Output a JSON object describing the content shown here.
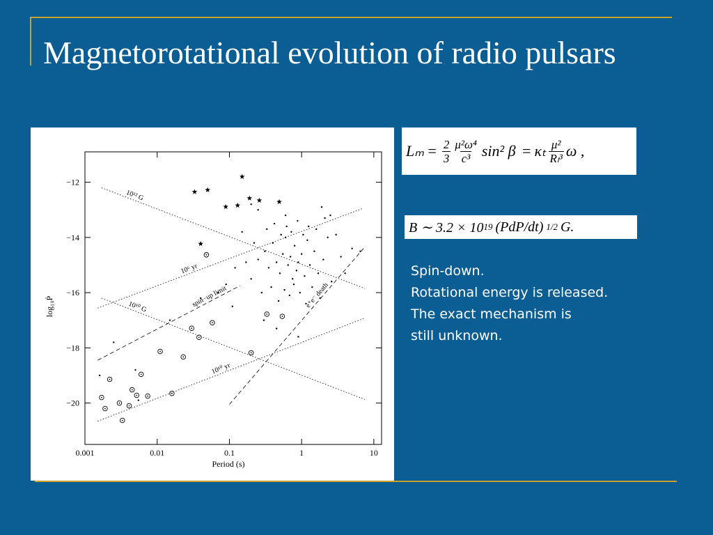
{
  "slide": {
    "title": "Magnetorotational evolution of radio pulsars",
    "equations": [
      [
        "Lₘ",
        "=",
        "2",
        "3",
        "μ²ω⁴",
        "c³",
        "sin² β",
        "=",
        "κₜ",
        "μ²",
        "Rₗ³",
        "ω ,"
      ],
      [
        "B ∼ 3.2 × 10",
        "19",
        "(PdP/dt)",
        "1/2",
        "G."
      ]
    ],
    "notes": [
      "Spin-down.",
      "Rotational energy is released.",
      "The exact mechanism is",
      "still unknown."
    ]
  },
  "chart_data": {
    "type": "scatter",
    "xlabel": "Period (s)",
    "ylabel": "log₁₀Ṗ",
    "xscale": "log",
    "xlim": [
      0.001,
      12.8
    ],
    "ylim": [
      -21.5,
      -10.9
    ],
    "xticks": [
      0.001,
      0.01,
      0.1,
      1,
      10
    ],
    "yticks": [
      {
        "value": -12,
        "label": "−12"
      },
      {
        "value": -14,
        "label": "−14"
      },
      {
        "value": -16,
        "label": "−16"
      },
      {
        "value": -18,
        "label": "−18"
      },
      {
        "value": -20,
        "label": "−20"
      }
    ],
    "color": "#000000",
    "series": [
      {
        "marker": "dot",
        "x": [
          0.25,
          0.31,
          0.35,
          0.4,
          0.45,
          0.5,
          0.55,
          0.6,
          0.65,
          0.7,
          0.75,
          0.8,
          0.85,
          0.9,
          1.0,
          1.1,
          1.2,
          1.3,
          1.5,
          1.7,
          2.0,
          2.3,
          2.6,
          3.0,
          3.5,
          0.2,
          0.22,
          0.28,
          0.33,
          0.38,
          0.42,
          0.48,
          0.52,
          0.58,
          0.62,
          0.68,
          0.72,
          0.78,
          0.88,
          0.95,
          1.05,
          1.15,
          1.25,
          1.4,
          1.6,
          1.8,
          2.1,
          0.17,
          0.15,
          0.12,
          0.3,
          0.45,
          0.9,
          1.9,
          2.5,
          0.07,
          0.09,
          0.04,
          0.0016,
          0.0055,
          0.005,
          0.0025,
          0.015,
          0.11,
          5.0,
          6.5,
          4.0,
          0.2,
          0.25,
          0.6
        ],
        "values": [
          -14.8,
          -14.5,
          -15.1,
          -14.2,
          -14.9,
          -15.3,
          -14.6,
          -14.0,
          -15.0,
          -14.7,
          -15.5,
          -14.3,
          -15.2,
          -14.9,
          -14.6,
          -15.4,
          -14.1,
          -15.0,
          -14.5,
          -15.3,
          -14.8,
          -14.0,
          -15.6,
          -13.9,
          -14.7,
          -15.5,
          -14.2,
          -16.0,
          -13.7,
          -15.8,
          -13.5,
          -16.3,
          -13.9,
          -15.9,
          -13.6,
          -16.1,
          -13.8,
          -15.7,
          -13.4,
          -16.0,
          -13.9,
          -16.4,
          -13.6,
          -15.8,
          -13.7,
          -16.2,
          -13.3,
          -14.9,
          -13.8,
          -15.1,
          -17.0,
          -17.3,
          -17.6,
          -12.9,
          -13.2,
          -16.0,
          -15.7,
          -16.2,
          -19.0,
          -19.9,
          -18.8,
          -17.8,
          -17.0,
          -16.5,
          -14.4,
          -14.5,
          -15.3,
          -12.8,
          -13.0,
          -13.2
        ]
      },
      {
        "marker": "circled-dot",
        "x": [
          0.0017,
          0.0019,
          0.0022,
          0.003,
          0.0033,
          0.0041,
          0.0045,
          0.0052,
          0.006,
          0.0074,
          0.011,
          0.016,
          0.023,
          0.03,
          0.038,
          0.058,
          0.048,
          0.2,
          0.33,
          0.54
        ],
        "values": [
          -19.8,
          -20.2,
          -19.14,
          -20.0,
          -20.63,
          -20.1,
          -19.52,
          -19.72,
          -18.96,
          -19.75,
          -18.13,
          -19.65,
          -18.33,
          -17.29,
          -17.62,
          -17.09,
          -14.63,
          -18.18,
          -16.78,
          -16.86
        ]
      },
      {
        "marker": "star",
        "x": [
          0.033,
          0.05,
          0.15,
          0.19,
          0.26,
          0.089,
          0.13,
          0.49,
          0.04
        ],
        "values": [
          -12.35,
          -12.28,
          -11.8,
          -12.58,
          -12.66,
          -12.89,
          -12.84,
          -12.71,
          -14.23
        ]
      }
    ],
    "lines": [
      {
        "label": "10¹² G",
        "dash": "dotted",
        "x": [
          0.0017,
          7.5
        ],
        "values": [
          -12.2,
          -15.85
        ]
      },
      {
        "label": "10⁶ yr",
        "dash": "dotted",
        "x": [
          0.0015,
          7.2
        ],
        "values": [
          -16.56,
          -12.94
        ]
      },
      {
        "label": "10¹⁰ G",
        "dash": "dotted",
        "x": [
          0.0017,
          7.5
        ],
        "values": [
          -16.2,
          -19.87
        ]
      },
      {
        "label": "spin−up limit",
        "dash": "dashed",
        "x": [
          0.0015,
          0.14
        ],
        "values": [
          -18.45,
          -15.75
        ]
      },
      {
        "label": "e⁺e⁻ death",
        "dash": "dashed",
        "x": [
          0.1,
          7.2
        ],
        "values": [
          -20.05,
          -14.4
        ]
      },
      {
        "label": "10¹⁰ yr",
        "dash": "dotted",
        "x": [
          0.0015,
          7.2
        ],
        "values": [
          -20.66,
          -16.94
        ]
      }
    ]
  }
}
